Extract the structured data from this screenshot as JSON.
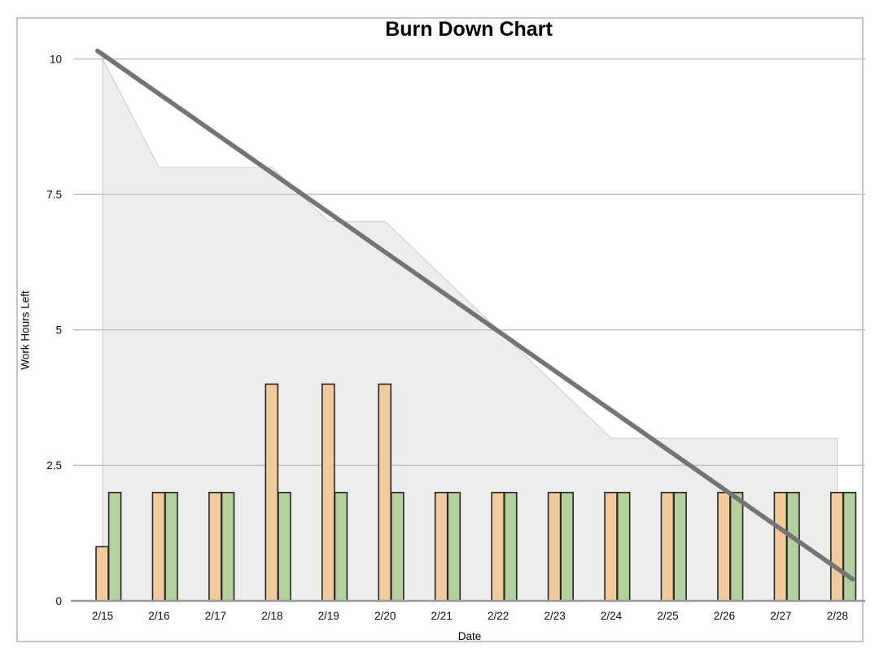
{
  "window": {
    "background_color": "#ffffff",
    "frame_border_color": "#c6c6c6"
  },
  "chart_data": {
    "type": "mixed",
    "components": [
      "area",
      "bar",
      "line"
    ],
    "title": "Burn Down Chart",
    "xlabel": "Date",
    "ylabel": "Work Hours Left",
    "categories": [
      "2/15",
      "2/16",
      "2/17",
      "2/18",
      "2/19",
      "2/20",
      "2/21",
      "2/22",
      "2/23",
      "2/24",
      "2/25",
      "2/26",
      "2/27",
      "2/28"
    ],
    "ytick_labels": [
      "0",
      "2.5",
      "5",
      "7.5",
      "10"
    ],
    "ytick_values": [
      0,
      2.5,
      5,
      7.5,
      10
    ],
    "ylim": [
      0,
      10.35
    ],
    "grid": "horizontal-only",
    "legend": "none",
    "area_series": {
      "name": "work-hours-remaining-area",
      "fill_color": "#ededed",
      "edge_color": "#d6d6d6",
      "values": [
        10,
        8,
        8,
        8,
        7,
        7,
        6,
        5,
        4,
        3,
        3,
        3,
        3,
        3
      ]
    },
    "bar_series": [
      {
        "name": "orange-bars",
        "fill_color": "#f2cb9d",
        "border_color": "#262626",
        "values": [
          1,
          2,
          2,
          4,
          4,
          4,
          2,
          2,
          2,
          2,
          2,
          2,
          2,
          2
        ]
      },
      {
        "name": "green-bars",
        "fill_color": "#b2d19e",
        "border_color": "#262626",
        "values": [
          2,
          2,
          2,
          2,
          2,
          2,
          2,
          2,
          2,
          2,
          2,
          2,
          2,
          2
        ]
      }
    ],
    "trend_line": {
      "name": "ideal-burndown-trend-line",
      "color": "#747474",
      "stroke_width": 5.6,
      "start": {
        "day_offset": -0.09,
        "value": 10.15
      },
      "end": {
        "day_offset": 13.27,
        "value": 0.4
      }
    },
    "axis_colors": {
      "gridline": "#c2c2c2",
      "baseline": "#9b9b9b"
    }
  }
}
